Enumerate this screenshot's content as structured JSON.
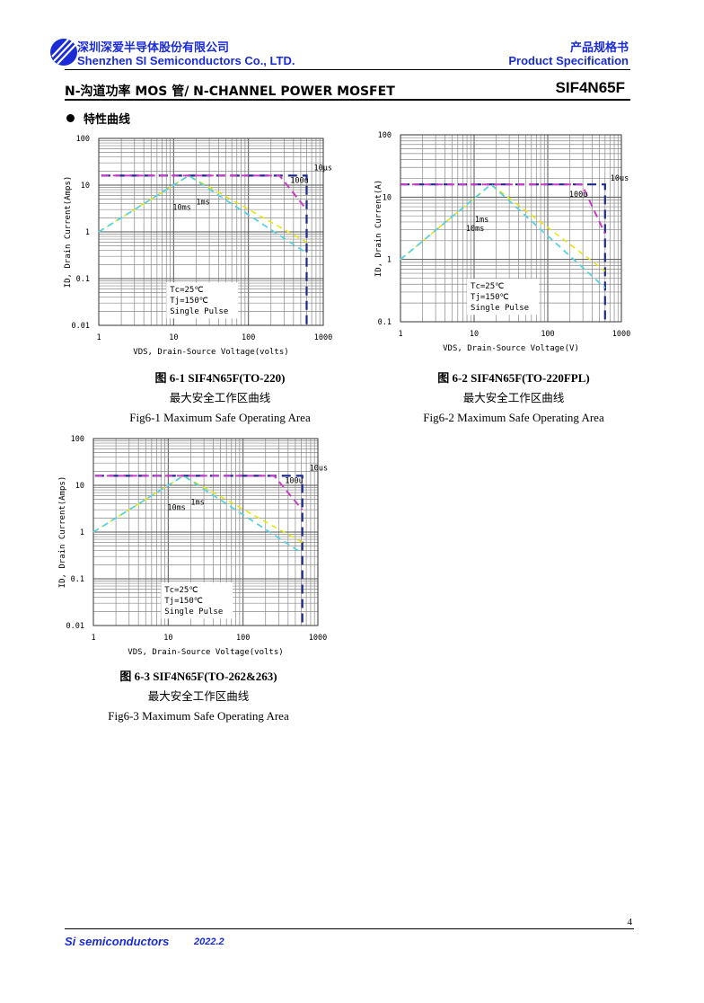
{
  "header": {
    "company_cn": "深圳深爱半导体股份有限公司",
    "company_en": "Shenzhen SI Semiconductors Co., LTD.",
    "spec_cn": "产品规格书",
    "spec_en": "Product Specification",
    "title": "N-沟道功率 MOS 管/ N-CHANNEL POWER MOSFET",
    "part": "SIF4N65F",
    "section": "特性曲线",
    "colors": {
      "brand": "#1a2cd6"
    }
  },
  "footer": {
    "brand": "Si semiconductors",
    "date": "2022.2",
    "page": "4"
  },
  "chart_data": [
    {
      "type": "line",
      "xlabel": "VDS, Drain-Source Voltage(volts)",
      "ylabel": "ID, Drain Current(Amps)",
      "x_scale": "log",
      "y_scale": "log",
      "xlim": [
        1,
        1000
      ],
      "ylim": [
        0.01,
        100
      ],
      "x_ticks": [
        "1",
        "10",
        "100",
        "1000"
      ],
      "y_ticks": [
        "100",
        "10",
        "1",
        "0.1",
        "0.01"
      ],
      "grid": true,
      "conditions": [
        "Tc=25℃",
        "Tj=150℃",
        "Single Pulse"
      ],
      "series": [
        {
          "name": "10μs",
          "color": "#1b2a8c",
          "x": [
            1.08,
            600,
            600
          ],
          "y": [
            16,
            16,
            0.01
          ]
        },
        {
          "name": "100u",
          "color": "#c83cc8",
          "x": [
            1.08,
            260,
            600
          ],
          "y": [
            16,
            16,
            3.0
          ]
        },
        {
          "name": "1ms",
          "color": "#e6e600",
          "x": [
            1,
            16,
            600
          ],
          "y": [
            1,
            16,
            0.6
          ]
        },
        {
          "name": "10ms",
          "color": "#5ad2dc",
          "x": [
            1,
            16,
            600
          ],
          "y": [
            1,
            16,
            0.35
          ]
        }
      ],
      "caption": {
        "title": "图 6-1 SIF4N65F(TO-220)",
        "cn": "最大安全工作区曲线",
        "en": "Fig6-1 Maximum Safe Operating Area"
      }
    },
    {
      "type": "line",
      "xlabel": "VDS, Drain-Source Voltage(V)",
      "ylabel": "ID, Drain Current(A)",
      "x_scale": "log",
      "y_scale": "log",
      "xlim": [
        1,
        1000
      ],
      "ylim": [
        0.1,
        100
      ],
      "x_ticks": [
        "1",
        "10",
        "100",
        "1000"
      ],
      "y_ticks": [
        "100",
        "10",
        "1",
        "0.1"
      ],
      "grid": true,
      "conditions": [
        "Tc=25℃",
        "Tj=150℃",
        "Single Pulse"
      ],
      "series": [
        {
          "name": "10us",
          "color": "#1b2a8c",
          "x": [
            1,
            600,
            600
          ],
          "y": [
            16,
            16,
            0.1
          ]
        },
        {
          "name": "100u",
          "color": "#c83cc8",
          "x": [
            1,
            290,
            600
          ],
          "y": [
            16,
            16,
            2.6
          ]
        },
        {
          "name": "1ms",
          "color": "#e6e600",
          "x": [
            1,
            17,
            600
          ],
          "y": [
            1,
            16,
            0.65
          ]
        },
        {
          "name": "10ms",
          "color": "#5ad2dc",
          "x": [
            1,
            17,
            600
          ],
          "y": [
            1,
            16,
            0.35
          ]
        }
      ],
      "caption": {
        "title": "图 6-2 SIF4N65F(TO-220FPL)",
        "cn": "最大安全工作区曲线",
        "en": "Fig6-2 Maximum Safe Operating Area"
      }
    },
    {
      "type": "line",
      "xlabel": "VDS, Drain-Source Voltage(volts)",
      "ylabel": "ID, Drain Current(Amps)",
      "x_scale": "log",
      "y_scale": "log",
      "xlim": [
        1,
        1000
      ],
      "ylim": [
        0.01,
        100
      ],
      "x_ticks": [
        "1",
        "10",
        "100",
        "1000"
      ],
      "y_ticks": [
        "100",
        "10",
        "1",
        "0.1",
        "0.01"
      ],
      "grid": true,
      "conditions": [
        "Tc=25℃",
        "Tj=150℃",
        "Single Pulse"
      ],
      "series": [
        {
          "name": "10us",
          "color": "#1b2a8c",
          "x": [
            1.05,
            620,
            620
          ],
          "y": [
            16,
            16,
            0.01
          ]
        },
        {
          "name": "100u",
          "color": "#c83cc8",
          "x": [
            1.05,
            260,
            620
          ],
          "y": [
            16,
            16,
            3.0
          ]
        },
        {
          "name": "1ms",
          "color": "#e6e600",
          "x": [
            1,
            16,
            620
          ],
          "y": [
            1,
            16,
            0.6
          ]
        },
        {
          "name": "10ms",
          "color": "#5ad2dc",
          "x": [
            1,
            16,
            620
          ],
          "y": [
            1,
            16,
            0.35
          ]
        }
      ],
      "caption": {
        "title": "图 6-3 SIF4N65F(TO-262&263)",
        "cn": "最大安全工作区曲线",
        "en": "Fig6-3    Maximum Safe Operating Area"
      }
    }
  ]
}
